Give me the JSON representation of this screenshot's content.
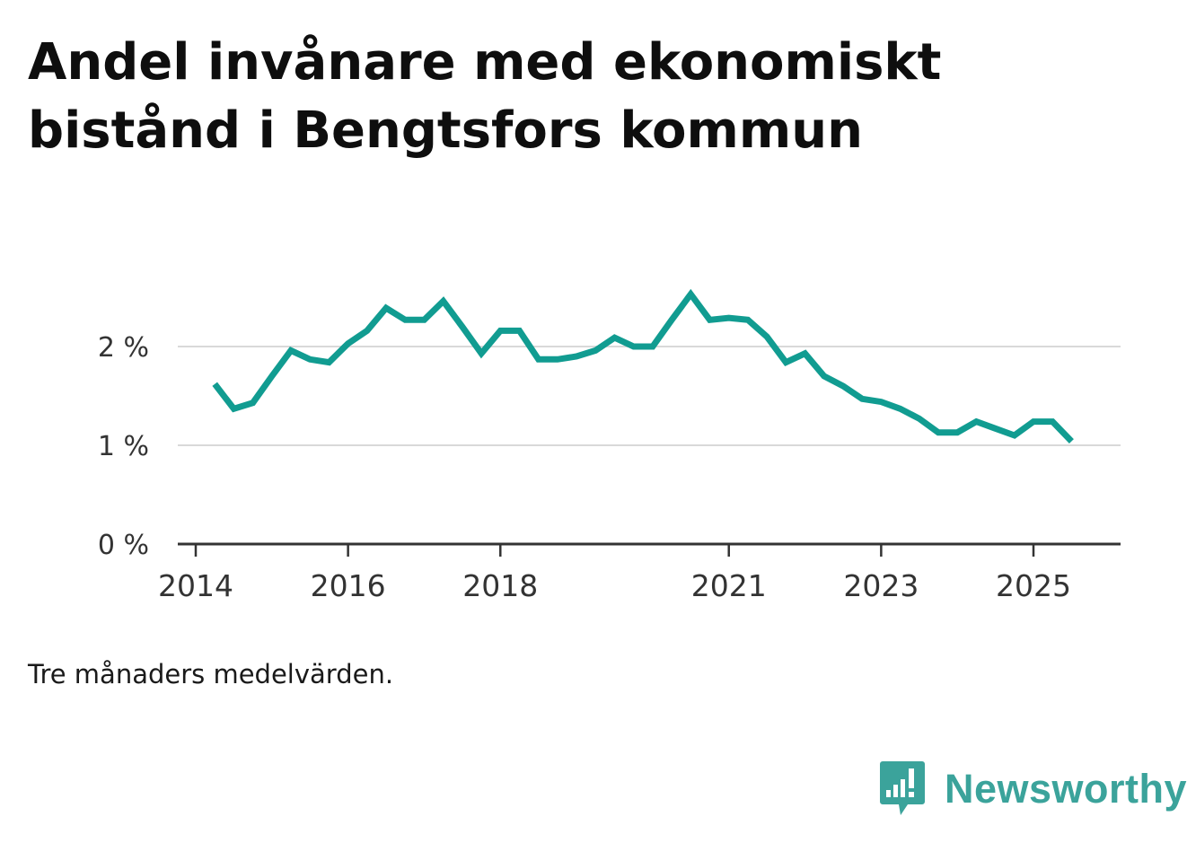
{
  "title_lines": [
    "Andel invånare med ekonomiskt",
    "bistånd i Bengtsfors kommun"
  ],
  "note": "Tre månaders medelvärden.",
  "brand": {
    "name": "Newsworthy",
    "icon": "newsworthy-logo-icon",
    "color": "#3ba39b"
  },
  "colors": {
    "line": "#119c91",
    "grid": "#d9d9d9",
    "axis": "#333333",
    "tick_text": "#333333"
  },
  "chart_data": {
    "type": "line",
    "title": "Andel invånare med ekonomiskt bistånd i Bengtsfors kommun",
    "xlabel": "",
    "ylabel": "",
    "xlim": [
      2014,
      2025.75
    ],
    "ylim": [
      0,
      2.5
    ],
    "grid": true,
    "legend": "none",
    "x_ticks": [
      2014,
      2016,
      2018,
      2021,
      2023,
      2025
    ],
    "y_ticks": [
      {
        "value": 0,
        "label": "0 %"
      },
      {
        "value": 1,
        "label": "1 %"
      },
      {
        "value": 2,
        "label": "2 %"
      }
    ],
    "series": [
      {
        "name": "Andel invånare med ekonomiskt bistånd",
        "x": [
          2014.25,
          2014.5,
          2014.75,
          2015.0,
          2015.25,
          2015.5,
          2015.75,
          2016.0,
          2016.25,
          2016.5,
          2016.75,
          2017.0,
          2017.25,
          2017.5,
          2017.75,
          2018.0,
          2018.25,
          2018.5,
          2018.75,
          2019.0,
          2019.25,
          2019.5,
          2019.75,
          2020.0,
          2020.25,
          2020.5,
          2020.75,
          2021.0,
          2021.25,
          2021.5,
          2021.75,
          2022.0,
          2022.25,
          2022.5,
          2022.75,
          2023.0,
          2023.25,
          2023.5,
          2023.75,
          2024.0,
          2024.25,
          2024.5,
          2024.75,
          2025.0,
          2025.25,
          2025.5
        ],
        "values": [
          1.62,
          1.37,
          1.43,
          1.7,
          1.96,
          1.87,
          1.84,
          2.03,
          2.16,
          2.39,
          2.27,
          2.27,
          2.46,
          2.2,
          1.93,
          2.16,
          2.16,
          1.87,
          1.87,
          1.9,
          1.96,
          2.09,
          2.0,
          2.0,
          2.27,
          2.53,
          2.27,
          2.29,
          2.27,
          2.1,
          1.84,
          1.93,
          1.7,
          1.6,
          1.47,
          1.44,
          1.37,
          1.27,
          1.13,
          1.13,
          1.24,
          1.17,
          1.1,
          1.24,
          1.24,
          1.04
        ]
      }
    ]
  }
}
